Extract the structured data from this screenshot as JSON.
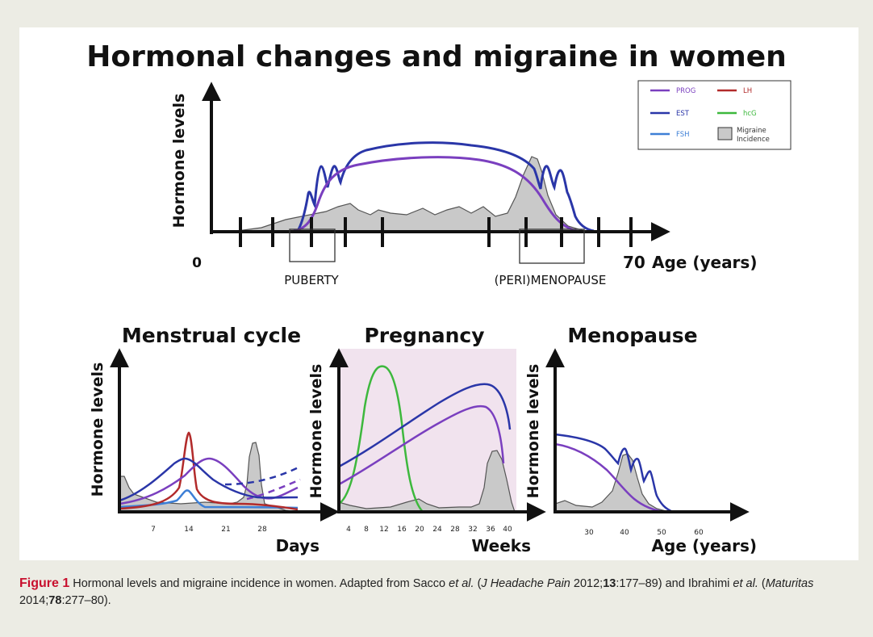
{
  "title": "Hormonal changes and migraine in women",
  "colors": {
    "PROG": "#7a3fbf",
    "EST": "#2a36a8",
    "FSH": "#3d7fd6",
    "LH": "#b22b2b",
    "hcG": "#3db83d",
    "migraine_fill": "#c9c9c9",
    "pregnancy_bg": "#f1e3ee",
    "caption_label": "#c8102e"
  },
  "legend": {
    "prog": "PROG",
    "lh": "LH",
    "est": "EST",
    "hcg": "hcG",
    "fsh": "FSH",
    "migraine_line1": "Migraine",
    "migraine_line2": "Incidence"
  },
  "top_chart": {
    "ylabel": "Hormone levels",
    "x_start": "0",
    "x_end": "70",
    "xlabel": "Age (years)",
    "region_puberty": "PUBERTY",
    "region_menopause": "(PERI)MENOPAUSE"
  },
  "menstrual": {
    "title": "Menstrual cycle",
    "ylabel": "Hormone levels",
    "xlabel": "Days",
    "ticks": [
      "7",
      "14",
      "21",
      "28"
    ]
  },
  "pregnancy": {
    "title": "Pregnancy",
    "ylabel": "Hormone levels",
    "xlabel": "Weeks",
    "ticks": [
      "4",
      "8",
      "12",
      "16",
      "20",
      "24",
      "28",
      "32",
      "36",
      "40"
    ]
  },
  "menopause": {
    "title": "Menopause",
    "ylabel": "Hormone levels",
    "xlabel": "Age (years)",
    "ticks": [
      "30",
      "40",
      "50",
      "60"
    ]
  },
  "caption": {
    "label": "Figure 1",
    "text1": " Hormonal levels and migraine incidence in women. Adapted from Sacco ",
    "etal1": "et al.",
    "text2": " (",
    "journal1": "J Headache Pain",
    "text3": " 2012;",
    "vol1": "13",
    "text4": ":177–89) and Ibrahimi ",
    "etal2": "et al.",
    "text5": " (",
    "journal2": "Maturitas",
    "text6": " 2014;",
    "vol2": "78",
    "text7": ":277–80)."
  }
}
